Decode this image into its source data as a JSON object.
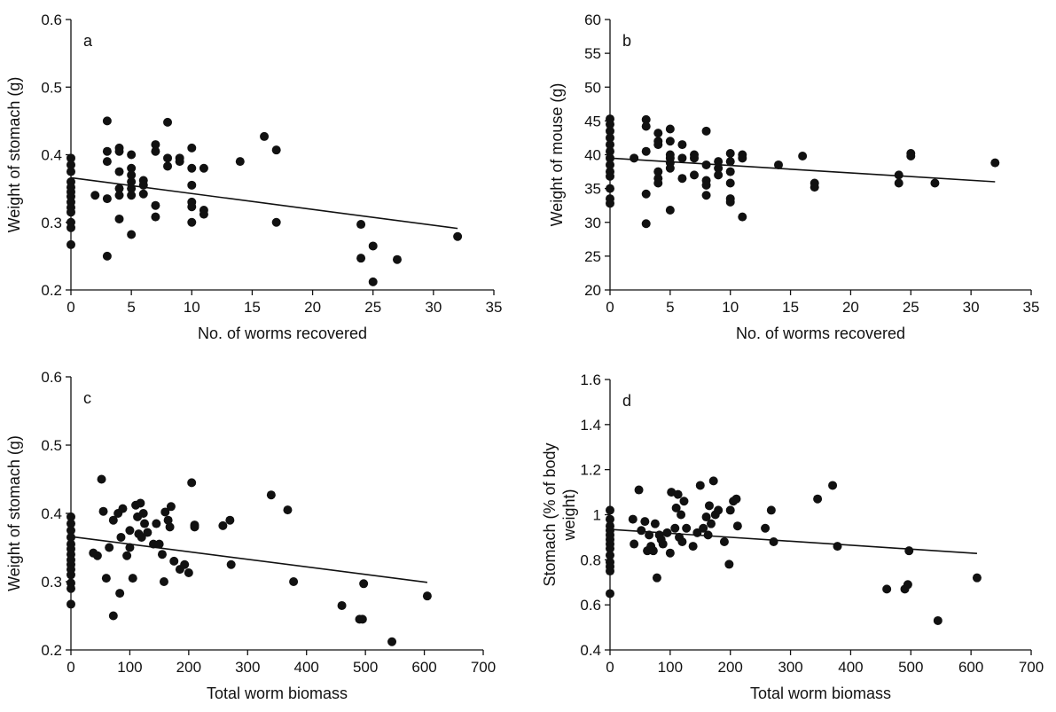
{
  "chart_data": [
    {
      "panel": "a",
      "type": "scatter",
      "xlabel": "No. of worms recovered",
      "ylabel": "Weight of stomach (g)",
      "xlim": [
        0,
        35
      ],
      "ylim": [
        0.2,
        0.6
      ],
      "xticks": [
        0,
        5,
        10,
        15,
        20,
        25,
        30,
        35
      ],
      "yticks": [
        0.2,
        0.3,
        0.4,
        0.5,
        0.6
      ],
      "ytick_labels": [
        "0.2",
        "0.3",
        "0.4",
        "0.5",
        "0.6"
      ],
      "trendline": {
        "x": [
          0,
          32
        ],
        "y": [
          0.366,
          0.291
        ]
      },
      "points": [
        [
          0,
          0.395
        ],
        [
          0,
          0.385
        ],
        [
          0,
          0.375
        ],
        [
          0,
          0.36
        ],
        [
          0,
          0.352
        ],
        [
          0,
          0.345
        ],
        [
          0,
          0.338
        ],
        [
          0,
          0.33
        ],
        [
          0,
          0.322
        ],
        [
          0,
          0.315
        ],
        [
          0,
          0.3
        ],
        [
          0,
          0.292
        ],
        [
          0,
          0.267
        ],
        [
          2,
          0.34
        ],
        [
          3,
          0.45
        ],
        [
          3,
          0.405
        ],
        [
          3,
          0.39
        ],
        [
          3,
          0.335
        ],
        [
          3,
          0.25
        ],
        [
          4,
          0.41
        ],
        [
          4,
          0.405
        ],
        [
          4,
          0.375
        ],
        [
          4,
          0.35
        ],
        [
          4,
          0.34
        ],
        [
          4,
          0.305
        ],
        [
          5,
          0.4
        ],
        [
          5,
          0.38
        ],
        [
          5,
          0.37
        ],
        [
          5,
          0.36
        ],
        [
          5,
          0.35
        ],
        [
          5,
          0.34
        ],
        [
          5,
          0.282
        ],
        [
          6,
          0.362
        ],
        [
          6,
          0.355
        ],
        [
          6,
          0.342
        ],
        [
          7,
          0.415
        ],
        [
          7,
          0.405
        ],
        [
          7,
          0.325
        ],
        [
          7,
          0.308
        ],
        [
          8,
          0.448
        ],
        [
          8,
          0.395
        ],
        [
          8,
          0.383
        ],
        [
          9,
          0.395
        ],
        [
          9,
          0.39
        ],
        [
          10,
          0.41
        ],
        [
          10,
          0.38
        ],
        [
          10,
          0.355
        ],
        [
          10,
          0.33
        ],
        [
          10,
          0.323
        ],
        [
          10,
          0.3
        ],
        [
          11,
          0.38
        ],
        [
          11,
          0.318
        ],
        [
          11,
          0.312
        ],
        [
          14,
          0.39
        ],
        [
          16,
          0.427
        ],
        [
          17,
          0.407
        ],
        [
          17,
          0.3
        ],
        [
          24,
          0.297
        ],
        [
          24,
          0.247
        ],
        [
          25,
          0.265
        ],
        [
          25,
          0.212
        ],
        [
          27,
          0.245
        ],
        [
          32,
          0.279
        ]
      ]
    },
    {
      "panel": "b",
      "type": "scatter",
      "xlabel": "No. of worms recovered",
      "ylabel": "Weight of mouse (g)",
      "xlim": [
        0,
        35
      ],
      "ylim": [
        20,
        60
      ],
      "xticks": [
        0,
        5,
        10,
        15,
        20,
        25,
        30,
        35
      ],
      "yticks": [
        20,
        25,
        30,
        35,
        40,
        45,
        50,
        55,
        60
      ],
      "ytick_labels": [
        "20",
        "25",
        "30",
        "35",
        "40",
        "45",
        "50",
        "55",
        "60"
      ],
      "trendline": {
        "x": [
          0,
          32
        ],
        "y": [
          39.5,
          36.0
        ]
      },
      "points": [
        [
          0,
          45.3
        ],
        [
          0,
          44.5
        ],
        [
          0,
          43.5
        ],
        [
          0,
          42.5
        ],
        [
          0,
          41.5
        ],
        [
          0,
          40.5
        ],
        [
          0,
          39.5
        ],
        [
          0,
          38.5
        ],
        [
          0,
          37.5
        ],
        [
          0,
          36.8
        ],
        [
          0,
          35
        ],
        [
          0,
          33.5
        ],
        [
          0,
          32.8
        ],
        [
          2,
          39.5
        ],
        [
          3,
          45.2
        ],
        [
          3,
          44.2
        ],
        [
          3,
          40.5
        ],
        [
          3,
          34.2
        ],
        [
          3,
          29.8
        ],
        [
          4,
          43.2
        ],
        [
          4,
          42
        ],
        [
          4,
          41.5
        ],
        [
          4,
          37.5
        ],
        [
          4,
          36.5
        ],
        [
          4,
          35.8
        ],
        [
          5,
          43.8
        ],
        [
          5,
          42
        ],
        [
          5,
          40
        ],
        [
          5,
          39.5
        ],
        [
          5,
          38.8
        ],
        [
          5,
          38
        ],
        [
          5,
          31.8
        ],
        [
          6,
          41.5
        ],
        [
          6,
          39.5
        ],
        [
          6,
          36.5
        ],
        [
          7,
          40
        ],
        [
          7,
          39.5
        ],
        [
          7,
          37
        ],
        [
          8,
          43.5
        ],
        [
          8,
          38.5
        ],
        [
          8,
          36.2
        ],
        [
          8,
          35.5
        ],
        [
          8,
          34
        ],
        [
          9,
          39
        ],
        [
          9,
          38
        ],
        [
          9,
          37
        ],
        [
          10,
          40.2
        ],
        [
          10,
          39
        ],
        [
          10,
          37.5
        ],
        [
          10,
          35.8
        ],
        [
          10,
          33.5
        ],
        [
          10,
          33
        ],
        [
          11,
          40
        ],
        [
          11,
          39.5
        ],
        [
          11,
          30.8
        ],
        [
          14,
          38.5
        ],
        [
          16,
          39.8
        ],
        [
          17,
          35.8
        ],
        [
          17,
          35.2
        ],
        [
          24,
          37
        ],
        [
          24,
          35.8
        ],
        [
          25,
          40.2
        ],
        [
          25,
          39.8
        ],
        [
          27,
          35.8
        ],
        [
          32,
          38.8
        ]
      ]
    },
    {
      "panel": "c",
      "type": "scatter",
      "xlabel": "Total worm biomass",
      "ylabel": "Weight of stomach (g)",
      "xlim": [
        0,
        700
      ],
      "ylim": [
        0.2,
        0.6
      ],
      "xticks": [
        0,
        100,
        200,
        300,
        400,
        500,
        600,
        700
      ],
      "yticks": [
        0.2,
        0.3,
        0.4,
        0.5,
        0.6
      ],
      "ytick_labels": [
        "0.2",
        "0.3",
        "0.4",
        "0.5",
        "0.6"
      ],
      "trendline": {
        "x": [
          0,
          605
        ],
        "y": [
          0.366,
          0.299
        ]
      },
      "points": [
        [
          0,
          0.395
        ],
        [
          0,
          0.385
        ],
        [
          0,
          0.375
        ],
        [
          0,
          0.365
        ],
        [
          0,
          0.355
        ],
        [
          0,
          0.348
        ],
        [
          0,
          0.34
        ],
        [
          0,
          0.332
        ],
        [
          0,
          0.325
        ],
        [
          0,
          0.318
        ],
        [
          0,
          0.31
        ],
        [
          0,
          0.298
        ],
        [
          0,
          0.29
        ],
        [
          0,
          0.267
        ],
        [
          38,
          0.342
        ],
        [
          45,
          0.338
        ],
        [
          52,
          0.45
        ],
        [
          55,
          0.403
        ],
        [
          60,
          0.305
        ],
        [
          65,
          0.35
        ],
        [
          72,
          0.39
        ],
        [
          72,
          0.25
        ],
        [
          80,
          0.4
        ],
        [
          83,
          0.283
        ],
        [
          85,
          0.365
        ],
        [
          88,
          0.407
        ],
        [
          95,
          0.338
        ],
        [
          100,
          0.375
        ],
        [
          100,
          0.35
        ],
        [
          105,
          0.305
        ],
        [
          110,
          0.412
        ],
        [
          113,
          0.395
        ],
        [
          115,
          0.37
        ],
        [
          118,
          0.415
        ],
        [
          120,
          0.365
        ],
        [
          123,
          0.4
        ],
        [
          125,
          0.385
        ],
        [
          130,
          0.372
        ],
        [
          140,
          0.355
        ],
        [
          145,
          0.385
        ],
        [
          150,
          0.355
        ],
        [
          155,
          0.34
        ],
        [
          158,
          0.3
        ],
        [
          160,
          0.402
        ],
        [
          165,
          0.39
        ],
        [
          168,
          0.38
        ],
        [
          170,
          0.41
        ],
        [
          175,
          0.33
        ],
        [
          185,
          0.318
        ],
        [
          193,
          0.325
        ],
        [
          200,
          0.313
        ],
        [
          205,
          0.445
        ],
        [
          210,
          0.383
        ],
        [
          210,
          0.38
        ],
        [
          258,
          0.382
        ],
        [
          270,
          0.39
        ],
        [
          272,
          0.325
        ],
        [
          340,
          0.427
        ],
        [
          368,
          0.405
        ],
        [
          378,
          0.3
        ],
        [
          460,
          0.265
        ],
        [
          490,
          0.245
        ],
        [
          495,
          0.245
        ],
        [
          497,
          0.297
        ],
        [
          545,
          0.212
        ],
        [
          605,
          0.279
        ]
      ]
    },
    {
      "panel": "d",
      "type": "scatter",
      "xlabel": "Total worm biomass",
      "ylabel": "Stomach (% of body weight)",
      "ylabel_lines": [
        "Stomach (% of body",
        "weight)"
      ],
      "xlim": [
        0,
        700
      ],
      "ylim": [
        0.4,
        1.6
      ],
      "xticks": [
        0,
        100,
        200,
        300,
        400,
        500,
        600,
        700
      ],
      "yticks": [
        0.4,
        0.6,
        0.8,
        1.0,
        1.2,
        1.4,
        1.6
      ],
      "ytick_labels": [
        "0.4",
        "0.6",
        "0.8",
        "1",
        "1.2",
        "1.4",
        "1.6"
      ],
      "trendline": {
        "x": [
          0,
          610
        ],
        "y": [
          0.935,
          0.828
        ]
      },
      "points": [
        [
          0,
          1.02
        ],
        [
          0,
          0.98
        ],
        [
          0,
          0.95
        ],
        [
          0,
          0.93
        ],
        [
          0,
          0.91
        ],
        [
          0,
          0.89
        ],
        [
          0,
          0.87
        ],
        [
          0,
          0.85
        ],
        [
          0,
          0.82
        ],
        [
          0,
          0.79
        ],
        [
          0,
          0.77
        ],
        [
          0,
          0.75
        ],
        [
          0,
          0.65
        ],
        [
          38,
          0.98
        ],
        [
          40,
          0.87
        ],
        [
          48,
          1.11
        ],
        [
          52,
          0.93
        ],
        [
          58,
          0.97
        ],
        [
          62,
          0.84
        ],
        [
          65,
          0.91
        ],
        [
          68,
          0.86
        ],
        [
          72,
          0.84
        ],
        [
          75,
          0.96
        ],
        [
          78,
          0.72
        ],
        [
          82,
          0.91
        ],
        [
          85,
          0.89
        ],
        [
          88,
          0.87
        ],
        [
          95,
          0.92
        ],
        [
          100,
          0.83
        ],
        [
          102,
          1.1
        ],
        [
          108,
          0.94
        ],
        [
          110,
          1.03
        ],
        [
          113,
          1.09
        ],
        [
          115,
          0.9
        ],
        [
          118,
          1.0
        ],
        [
          120,
          0.88
        ],
        [
          123,
          1.06
        ],
        [
          127,
          0.94
        ],
        [
          138,
          0.86
        ],
        [
          145,
          0.92
        ],
        [
          150,
          1.13
        ],
        [
          155,
          0.94
        ],
        [
          160,
          0.99
        ],
        [
          163,
          0.91
        ],
        [
          165,
          1.04
        ],
        [
          168,
          0.96
        ],
        [
          172,
          1.15
        ],
        [
          175,
          1.0
        ],
        [
          180,
          1.02
        ],
        [
          190,
          0.88
        ],
        [
          198,
          0.78
        ],
        [
          200,
          1.02
        ],
        [
          205,
          1.06
        ],
        [
          210,
          1.07
        ],
        [
          212,
          0.95
        ],
        [
          258,
          0.94
        ],
        [
          268,
          1.02
        ],
        [
          272,
          0.88
        ],
        [
          345,
          1.07
        ],
        [
          370,
          1.13
        ],
        [
          378,
          0.86
        ],
        [
          460,
          0.67
        ],
        [
          490,
          0.67
        ],
        [
          495,
          0.69
        ],
        [
          497,
          0.84
        ],
        [
          545,
          0.53
        ],
        [
          610,
          0.72
        ]
      ]
    }
  ]
}
